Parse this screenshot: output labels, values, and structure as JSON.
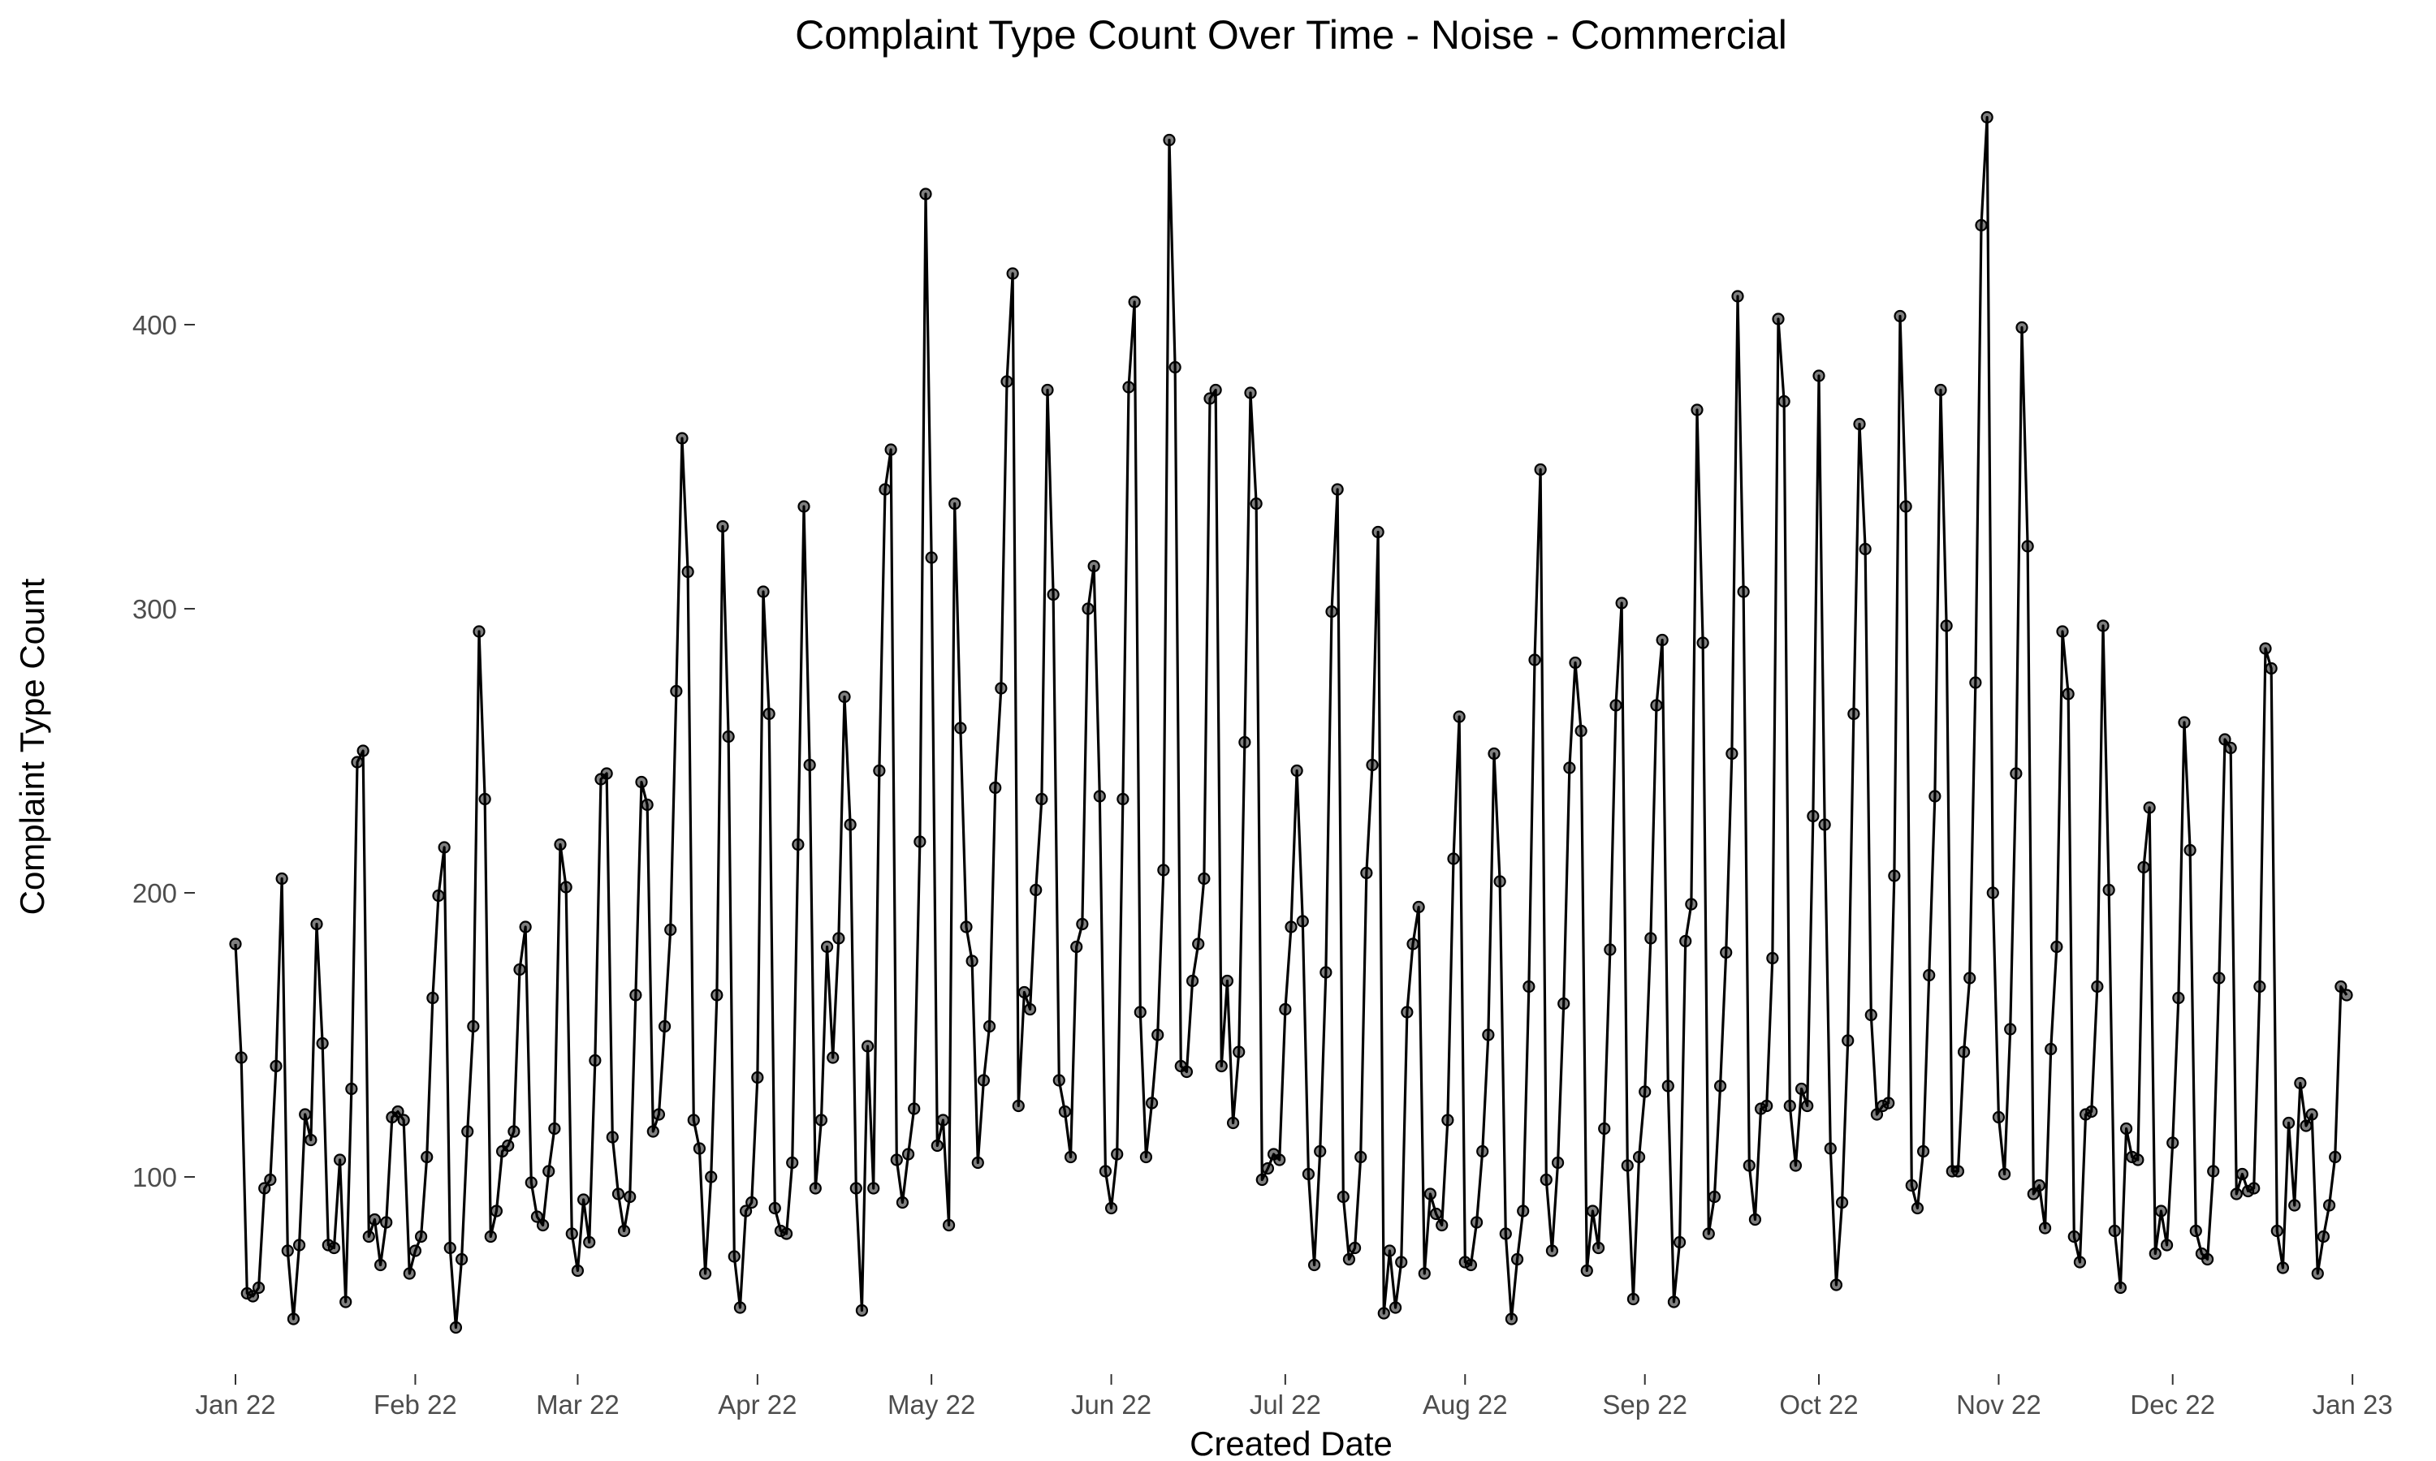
{
  "chart_data": {
    "type": "line",
    "title": "Complaint Type Count Over Time - Noise - Commercial",
    "xlabel": "Created Date",
    "ylabel": "Complaint Type Count",
    "grid": false,
    "legend": "none",
    "xlim": [
      "2022-01-01",
      "2022-12-31"
    ],
    "ylim": [
      40,
      480
    ],
    "x_ticks": [
      {
        "date": "2022-01-01",
        "label": "Jan 22"
      },
      {
        "date": "2022-02-01",
        "label": "Feb 22"
      },
      {
        "date": "2022-03-01",
        "label": "Mar 22"
      },
      {
        "date": "2022-04-01",
        "label": "Apr 22"
      },
      {
        "date": "2022-05-01",
        "label": "May 22"
      },
      {
        "date": "2022-06-01",
        "label": "Jun 22"
      },
      {
        "date": "2022-07-01",
        "label": "Jul 22"
      },
      {
        "date": "2022-08-01",
        "label": "Aug 22"
      },
      {
        "date": "2022-09-01",
        "label": "Sep 22"
      },
      {
        "date": "2022-10-01",
        "label": "Oct 22"
      },
      {
        "date": "2022-11-01",
        "label": "Nov 22"
      },
      {
        "date": "2022-12-01",
        "label": "Dec 22"
      },
      {
        "date": "2023-01-01",
        "label": "Jan 23"
      }
    ],
    "y_ticks": [
      100,
      200,
      300,
      400
    ],
    "series_color": "#000000",
    "values": [
      182,
      142,
      59,
      58,
      61,
      96,
      99,
      139,
      205,
      74,
      50,
      76,
      122,
      113,
      189,
      147,
      76,
      75,
      106,
      56,
      131,
      246,
      250,
      79,
      85,
      69,
      84,
      121,
      123,
      120,
      66,
      74,
      79,
      107,
      163,
      199,
      216,
      75,
      47,
      71,
      116,
      153,
      292,
      233,
      79,
      88,
      109,
      111,
      116,
      173,
      188,
      98,
      86,
      83,
      102,
      117,
      217,
      202,
      80,
      67,
      92,
      77,
      141,
      240,
      242,
      114,
      94,
      81,
      93,
      164,
      239,
      231,
      116,
      122,
      153,
      187,
      271,
      360,
      313,
      120,
      110,
      66,
      100,
      164,
      329,
      255,
      72,
      54,
      88,
      91,
      135,
      306,
      263,
      89,
      81,
      80,
      105,
      217,
      336,
      245,
      96,
      120,
      181,
      142,
      184,
      269,
      224,
      96,
      53,
      146,
      96,
      243,
      342,
      356,
      106,
      91,
      108,
      124,
      218,
      446,
      318,
      111,
      120,
      83,
      337,
      258,
      188,
      176,
      105,
      134,
      153,
      237,
      272,
      380,
      418,
      125,
      165,
      159,
      201,
      233,
      377,
      305,
      134,
      123,
      107,
      181,
      189,
      300,
      315,
      234,
      102,
      89,
      108,
      233,
      378,
      408,
      158,
      107,
      126,
      150,
      208,
      465,
      385,
      139,
      137,
      169,
      182,
      205,
      374,
      377,
      139,
      169,
      119,
      144,
      253,
      376,
      337,
      99,
      103,
      108,
      106,
      159,
      188,
      243,
      190,
      101,
      69,
      109,
      172,
      299,
      342,
      93,
      71,
      75,
      107,
      207,
      245,
      327,
      52,
      74,
      54,
      70,
      158,
      182,
      195,
      66,
      94,
      87,
      83,
      120,
      212,
      262,
      70,
      69,
      84,
      109,
      150,
      249,
      204,
      80,
      50,
      71,
      88,
      167,
      282,
      349,
      99,
      74,
      105,
      161,
      244,
      281,
      257,
      67,
      88,
      75,
      117,
      180,
      266,
      302,
      104,
      57,
      107,
      130,
      184,
      266,
      289,
      132,
      56,
      77,
      183,
      196,
      370,
      288,
      80,
      93,
      132,
      179,
      249,
      410,
      306,
      104,
      85,
      124,
      125,
      177,
      402,
      373,
      125,
      104,
      131,
      125,
      227,
      382,
      224,
      110,
      62,
      91,
      148,
      263,
      365,
      321,
      157,
      122,
      125,
      126,
      206,
      403,
      336,
      97,
      89,
      109,
      171,
      234,
      377,
      294,
      102,
      102,
      144,
      170,
      274,
      435,
      473,
      200,
      121,
      101,
      152,
      242,
      399,
      322,
      94,
      97,
      82,
      145,
      181,
      292,
      270,
      79,
      70,
      122,
      123,
      167,
      294,
      201,
      81,
      61,
      117,
      107,
      106,
      209,
      230,
      73,
      88,
      76,
      112,
      163,
      260,
      215,
      81,
      73,
      71,
      102,
      170,
      254,
      251,
      94,
      101,
      95,
      96,
      167,
      286,
      279,
      81,
      68,
      119,
      90,
      133,
      118,
      122,
      66,
      79,
      90,
      107,
      167,
      164
    ]
  }
}
